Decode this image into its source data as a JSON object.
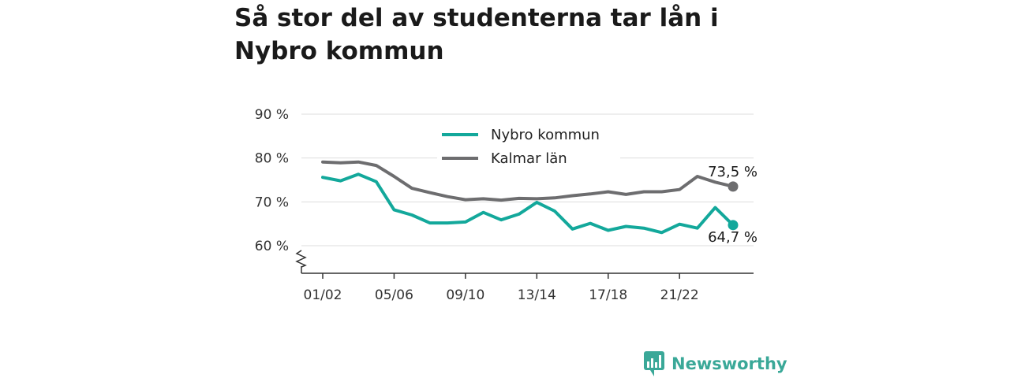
{
  "title": "Så stor del av studenterna tar lån i Nybro kommun",
  "brand": {
    "name": "Newsworthy"
  },
  "colors": {
    "nybro": "#13a89b",
    "kalmar": "#6d6d6f",
    "brand": "#3aa898",
    "grid": "#dddddd"
  },
  "chart_data": {
    "type": "line",
    "title": "Så stor del av studenterna tar lån i Nybro kommun",
    "x": [
      "01/02",
      "02/03",
      "03/04",
      "04/05",
      "05/06",
      "06/07",
      "07/08",
      "08/09",
      "09/10",
      "10/11",
      "11/12",
      "12/13",
      "13/14",
      "14/15",
      "15/16",
      "16/17",
      "17/18",
      "18/19",
      "19/20",
      "20/21",
      "21/22",
      "22/23",
      "23/24",
      "24/25"
    ],
    "x_tick_labels": [
      "01/02",
      "05/06",
      "09/10",
      "13/14",
      "17/18",
      "21/22"
    ],
    "y_tick_labels": [
      "60 %",
      "70 %",
      "80 %",
      "90 %"
    ],
    "ylim": [
      54,
      90
    ],
    "y_axis_break": true,
    "grid": true,
    "legend_position": "top-center",
    "series": [
      {
        "name": "Nybro kommun",
        "color": "#13a89b",
        "values": [
          75.6,
          74.8,
          76.3,
          74.6,
          68.2,
          67.0,
          65.2,
          65.2,
          65.4,
          67.6,
          65.9,
          67.2,
          69.9,
          67.9,
          63.8,
          65.1,
          63.5,
          64.4,
          64.0,
          63.0,
          64.9,
          64.0,
          68.7,
          64.7
        ],
        "end_label": "64,7 %"
      },
      {
        "name": "Kalmar län",
        "color": "#6d6d6f",
        "values": [
          79.1,
          78.9,
          79.1,
          78.3,
          75.8,
          73.1,
          72.1,
          71.2,
          70.5,
          70.7,
          70.4,
          70.8,
          70.7,
          70.9,
          71.4,
          71.8,
          72.3,
          71.7,
          72.3,
          72.3,
          72.8,
          75.8,
          74.5,
          73.5
        ],
        "end_label": "73,5 %"
      }
    ]
  }
}
